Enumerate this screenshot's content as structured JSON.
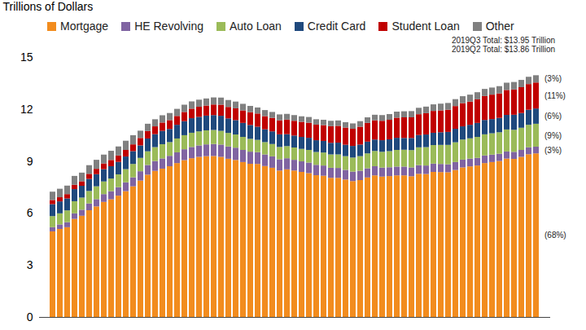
{
  "chart_data": {
    "type": "bar",
    "stacked": true,
    "legend": "top",
    "grid": false,
    "ylabel": "Trillions of Dollars",
    "ylim": [
      0,
      15
    ],
    "yticks": [
      0,
      3,
      6,
      9,
      12,
      15
    ],
    "annotations": [
      "2019Q3 Total: $13.95 Trillion",
      "2019Q2 Total: $13.86 Trillion"
    ],
    "categories": [
      null,
      null,
      null,
      null,
      null,
      null,
      null,
      null,
      null,
      null,
      null,
      null,
      null,
      null,
      null,
      null,
      null,
      null,
      null,
      null,
      null,
      null,
      null,
      null,
      null,
      null,
      null,
      null,
      null,
      null,
      null,
      null,
      null,
      null,
      null,
      null,
      null,
      null,
      null,
      null,
      null,
      null,
      null,
      null,
      null,
      null,
      null,
      null,
      null,
      null,
      null,
      null,
      null,
      null,
      null,
      null,
      null,
      null,
      null,
      null,
      null,
      null,
      null,
      null,
      null,
      null,
      null
    ],
    "series": [
      {
        "name": "Mortgage",
        "color": "#f28c1e",
        "share_label": "(68%)",
        "values": [
          4.94,
          5.08,
          5.18,
          5.66,
          5.84,
          6.16,
          6.38,
          6.64,
          6.79,
          7.0,
          7.26,
          7.54,
          7.87,
          8.21,
          8.43,
          8.56,
          8.7,
          8.88,
          9.05,
          9.16,
          9.24,
          9.28,
          9.29,
          9.24,
          9.13,
          9.06,
          8.94,
          8.84,
          8.83,
          8.71,
          8.61,
          8.45,
          8.52,
          8.45,
          8.37,
          8.3,
          8.18,
          8.15,
          8.03,
          8.03,
          7.93,
          7.84,
          7.9,
          8.05,
          8.17,
          8.1,
          8.13,
          8.17,
          8.17,
          8.12,
          8.26,
          8.25,
          8.37,
          8.36,
          8.35,
          8.48,
          8.63,
          8.69,
          8.74,
          8.88,
          8.94,
          9.0,
          9.14,
          9.12,
          9.24,
          9.39,
          9.44
        ]
      },
      {
        "name": "HE Revolving",
        "color": "#8064a2",
        "share_label": "(3%)",
        "values": [
          0.24,
          0.26,
          0.29,
          0.32,
          0.35,
          0.39,
          0.42,
          0.45,
          0.47,
          0.49,
          0.51,
          0.52,
          0.54,
          0.56,
          0.57,
          0.59,
          0.6,
          0.62,
          0.63,
          0.65,
          0.66,
          0.68,
          0.69,
          0.71,
          0.71,
          0.71,
          0.7,
          0.7,
          0.68,
          0.67,
          0.66,
          0.65,
          0.64,
          0.62,
          0.61,
          0.61,
          0.6,
          0.59,
          0.58,
          0.57,
          0.56,
          0.55,
          0.54,
          0.53,
          0.53,
          0.52,
          0.51,
          0.51,
          0.51,
          0.51,
          0.5,
          0.49,
          0.48,
          0.47,
          0.46,
          0.46,
          0.45,
          0.45,
          0.44,
          0.44,
          0.43,
          0.42,
          0.41,
          0.41,
          0.4,
          0.4,
          0.39
        ]
      },
      {
        "name": "Auto Loan",
        "color": "#9bbb59",
        "share_label": "(9%)",
        "values": [
          0.64,
          0.64,
          0.68,
          0.7,
          0.7,
          0.72,
          0.74,
          0.73,
          0.73,
          0.74,
          0.76,
          0.77,
          0.77,
          0.79,
          0.8,
          0.82,
          0.79,
          0.8,
          0.81,
          0.82,
          0.81,
          0.81,
          0.81,
          0.79,
          0.78,
          0.76,
          0.75,
          0.74,
          0.71,
          0.71,
          0.71,
          0.71,
          0.7,
          0.71,
          0.72,
          0.73,
          0.74,
          0.75,
          0.77,
          0.78,
          0.79,
          0.81,
          0.84,
          0.86,
          0.88,
          0.91,
          0.93,
          0.96,
          0.97,
          1.0,
          1.03,
          1.06,
          1.07,
          1.1,
          1.12,
          1.14,
          1.16,
          1.17,
          1.21,
          1.22,
          1.23,
          1.24,
          1.27,
          1.27,
          1.28,
          1.3,
          1.32
        ]
      },
      {
        "name": "Credit Card",
        "color": "#1f497d",
        "share_label": "(6%)",
        "values": [
          0.69,
          0.69,
          0.69,
          0.7,
          0.68,
          0.7,
          0.7,
          0.71,
          0.71,
          0.72,
          0.73,
          0.74,
          0.72,
          0.74,
          0.75,
          0.77,
          0.76,
          0.79,
          0.81,
          0.84,
          0.84,
          0.85,
          0.86,
          0.87,
          0.84,
          0.83,
          0.81,
          0.8,
          0.76,
          0.74,
          0.73,
          0.73,
          0.69,
          0.69,
          0.69,
          0.7,
          0.68,
          0.67,
          0.67,
          0.68,
          0.66,
          0.67,
          0.67,
          0.68,
          0.66,
          0.67,
          0.68,
          0.7,
          0.68,
          0.7,
          0.71,
          0.73,
          0.71,
          0.73,
          0.75,
          0.78,
          0.76,
          0.78,
          0.81,
          0.83,
          0.82,
          0.83,
          0.84,
          0.87,
          0.85,
          0.87,
          0.88
        ]
      },
      {
        "name": "Student Loan",
        "color": "#c00000",
        "share_label": "(11%)",
        "values": [
          0.24,
          0.24,
          0.25,
          0.25,
          0.26,
          0.29,
          0.31,
          0.33,
          0.36,
          0.37,
          0.38,
          0.39,
          0.43,
          0.43,
          0.45,
          0.48,
          0.51,
          0.51,
          0.53,
          0.55,
          0.58,
          0.58,
          0.61,
          0.64,
          0.66,
          0.68,
          0.72,
          0.74,
          0.76,
          0.76,
          0.78,
          0.81,
          0.84,
          0.85,
          0.87,
          0.87,
          0.9,
          0.91,
          0.96,
          0.97,
          0.99,
          0.99,
          1.03,
          1.08,
          1.11,
          1.12,
          1.13,
          1.16,
          1.19,
          1.19,
          1.2,
          1.23,
          1.26,
          1.26,
          1.28,
          1.31,
          1.34,
          1.34,
          1.36,
          1.38,
          1.41,
          1.41,
          1.44,
          1.46,
          1.49,
          1.48,
          1.5
        ]
      },
      {
        "name": "Other",
        "color": "#808080",
        "share_label": "(3%)",
        "values": [
          0.48,
          0.49,
          0.49,
          0.51,
          0.5,
          0.5,
          0.52,
          0.51,
          0.53,
          0.52,
          0.53,
          0.53,
          0.42,
          0.42,
          0.41,
          0.42,
          0.41,
          0.41,
          0.42,
          0.42,
          0.41,
          0.41,
          0.41,
          0.41,
          0.4,
          0.39,
          0.38,
          0.36,
          0.35,
          0.35,
          0.34,
          0.34,
          0.33,
          0.33,
          0.32,
          0.33,
          0.31,
          0.31,
          0.31,
          0.31,
          0.31,
          0.31,
          0.32,
          0.32,
          0.32,
          0.33,
          0.33,
          0.35,
          0.35,
          0.36,
          0.37,
          0.38,
          0.38,
          0.39,
          0.39,
          0.4,
          0.4,
          0.4,
          0.41,
          0.41,
          0.41,
          0.42,
          0.42,
          0.43,
          0.42,
          0.42,
          0.42
        ]
      }
    ]
  }
}
